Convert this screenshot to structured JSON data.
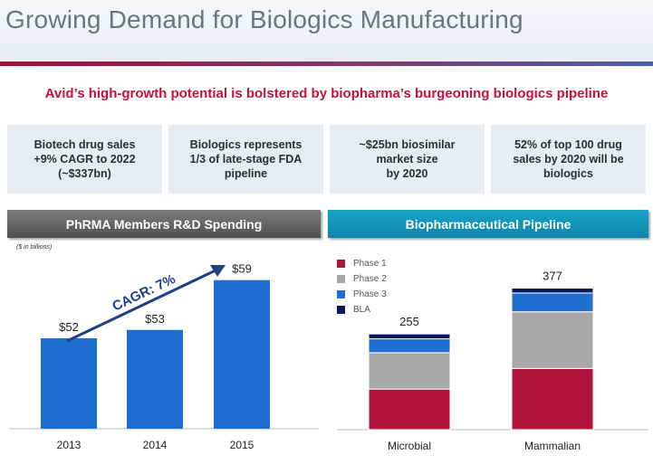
{
  "header": {
    "title": "Growing Demand for Biologics Manufacturing",
    "subtitle": "Avid’s high-growth potential is bolstered by biopharma’s burgeoning biologics pipeline"
  },
  "stats": [
    "Biotech drug sales\n+9% CAGR to 2022\n(~$337bn)",
    "Biologics represents\n1/3 of late-stage FDA\npipeline",
    "~$25bn biosimilar\nmarket size\nby 2020",
    "52% of top 100 drug\nsales by 2020 will be\nbiologics"
  ],
  "colors": {
    "title_gray": "#6b7580",
    "accent_red": "#c8103f",
    "bar_blue": "#1f6fd1",
    "panel_gray": "#5e5e5e",
    "panel_teal": "#1296bd"
  },
  "chart_data": [
    {
      "type": "bar",
      "title": "PhRMA Members R&D Spending",
      "unit_note": "($ in billions)",
      "categories": [
        "2013",
        "2014",
        "2015"
      ],
      "values": [
        52,
        53,
        59
      ],
      "value_labels": [
        "$52",
        "$53",
        "$59"
      ],
      "annotation": "CAGR: 7%",
      "color": "#1f6fd1"
    },
    {
      "type": "bar",
      "stacked": true,
      "title": "Biopharmaceutical Pipeline",
      "categories": [
        "Microbial",
        "Mammalian"
      ],
      "totals": [
        255,
        377
      ],
      "series": [
        {
          "name": "Phase 1",
          "color": "#b0123a",
          "values": [
            108,
            163
          ]
        },
        {
          "name": "Phase 2",
          "color": "#a8a8a8",
          "values": [
            97,
            151
          ]
        },
        {
          "name": "Phase 3",
          "color": "#1f6fd1",
          "values": [
            37,
            50
          ]
        },
        {
          "name": "BLA",
          "color": "#0c1a5c",
          "values": [
            13,
            13
          ]
        }
      ],
      "legend_position": "top-left"
    }
  ]
}
